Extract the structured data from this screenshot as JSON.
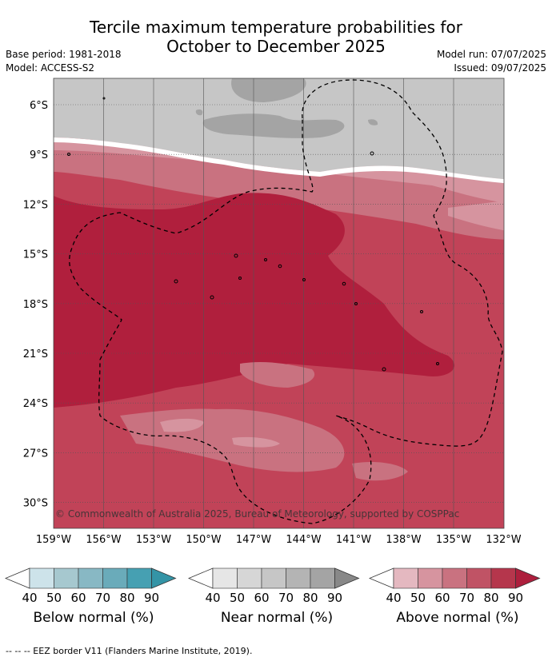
{
  "title_line1": "Tercile maximum temperature probabilities for",
  "title_line2": "October to December 2025",
  "base_period": "Base period: 1981-2018",
  "model": "Model: ACCESS-S2",
  "model_run": "Model run: 07/07/2025",
  "issued": "Issued: 09/07/2025",
  "copyright": "© Commonwealth of Australia 2025, Bureau of Meteorology, supported by COSPPac",
  "lat_labels": [
    "6°S",
    "9°S",
    "12°S",
    "15°S",
    "18°S",
    "21°S",
    "24°S",
    "27°S",
    "30°S"
  ],
  "lon_labels": [
    "159°W",
    "156°W",
    "153°W",
    "150°W",
    "147°W",
    "144°W",
    "141°W",
    "138°W",
    "135°W",
    "132°W"
  ],
  "legend_ticks": [
    "40",
    "50",
    "60",
    "70",
    "80",
    "90"
  ],
  "legends": [
    {
      "label": "Below normal (%)",
      "colors": [
        "#ffffff",
        "#cde3ea",
        "#a6c8cf",
        "#88b8c4",
        "#6aabba",
        "#46a0b2",
        "#3494a6"
      ]
    },
    {
      "label": "Near normal (%)",
      "colors": [
        "#ffffff",
        "#e6e6e6",
        "#d6d6d6",
        "#c6c6c6",
        "#b4b4b4",
        "#a4a4a4",
        "#888888"
      ]
    },
    {
      "label": "Above normal (%)",
      "colors": [
        "#ffffff",
        "#e4b8c0",
        "#d6949f",
        "#c97280",
        "#c05365",
        "#b5364c",
        "#ad1f3d"
      ]
    }
  ],
  "footnote": "-- -- -- EEZ border V11 (Flanders Marine Institute, 2019).",
  "map_colors": {
    "near_light": "#c6c6c6",
    "near_dark": "#a4a4a4",
    "above_60": "#d6949f",
    "above_70": "#c97280",
    "above_80": "#c14358",
    "above_90": "#b01f3d",
    "white_edge": "#e6e6e6"
  }
}
